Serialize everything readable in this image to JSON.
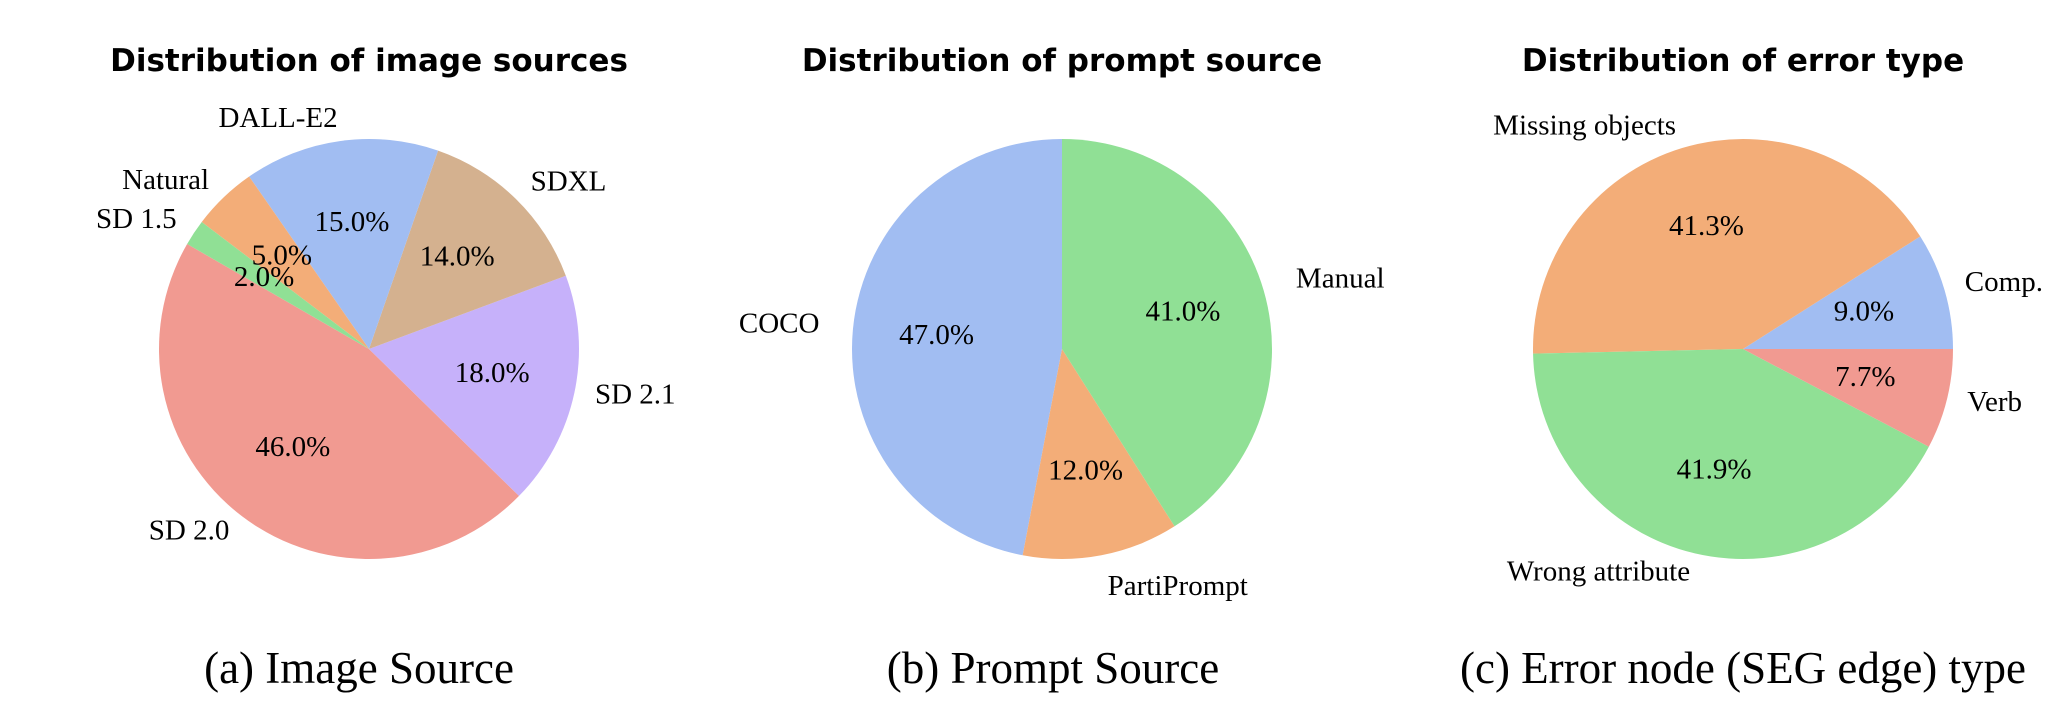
{
  "chart_data": [
    {
      "type": "pie",
      "title": "Distribution of image sources",
      "caption": "(a) Image Source",
      "slices": [
        {
          "label": "SD 2.0",
          "value": 46.0,
          "pct_text": "46.0%",
          "color": "#f19a91"
        },
        {
          "label": "SD 2.1",
          "value": 18.0,
          "pct_text": "18.0%",
          "color": "#c6b1fa"
        },
        {
          "label": "SDXL",
          "value": 14.0,
          "pct_text": "14.0%",
          "color": "#d4b18f"
        },
        {
          "label": "DALL-E2",
          "value": 15.0,
          "pct_text": "15.0%",
          "color": "#a1bdf2"
        },
        {
          "label": "Natural",
          "value": 5.0,
          "pct_text": "5.0%",
          "color": "#f3ad78"
        },
        {
          "label": "SD 1.5",
          "value": 2.0,
          "pct_text": "2.0%",
          "color": "#90e095"
        }
      ]
    },
    {
      "type": "pie",
      "title": "Distribution of prompt source",
      "caption": "(b) Prompt Source",
      "slices": [
        {
          "label": "COCO",
          "value": 47.0,
          "pct_text": "47.0%",
          "color": "#a1bdf2"
        },
        {
          "label": "PartiPrompt",
          "value": 12.0,
          "pct_text": "12.0%",
          "color": "#f3ad78"
        },
        {
          "label": "Manual",
          "value": 41.0,
          "pct_text": "41.0%",
          "color": "#90e095"
        }
      ]
    },
    {
      "type": "pie",
      "title": "Distribution of error type",
      "caption": "(c) Error node (SEG edge) type",
      "slices": [
        {
          "label": "Comp.",
          "value": 9.0,
          "pct_text": "9.0%",
          "color": "#a1bdf2"
        },
        {
          "label": "Missing objects",
          "value": 41.3,
          "pct_text": "41.3%",
          "color": "#f3ad78"
        },
        {
          "label": "Wrong attribute",
          "value": 41.9,
          "pct_text": "41.9%",
          "color": "#90e095"
        },
        {
          "label": "Verb",
          "value": 7.7,
          "pct_text": "7.7%",
          "color": "#f19a91"
        }
      ]
    }
  ]
}
